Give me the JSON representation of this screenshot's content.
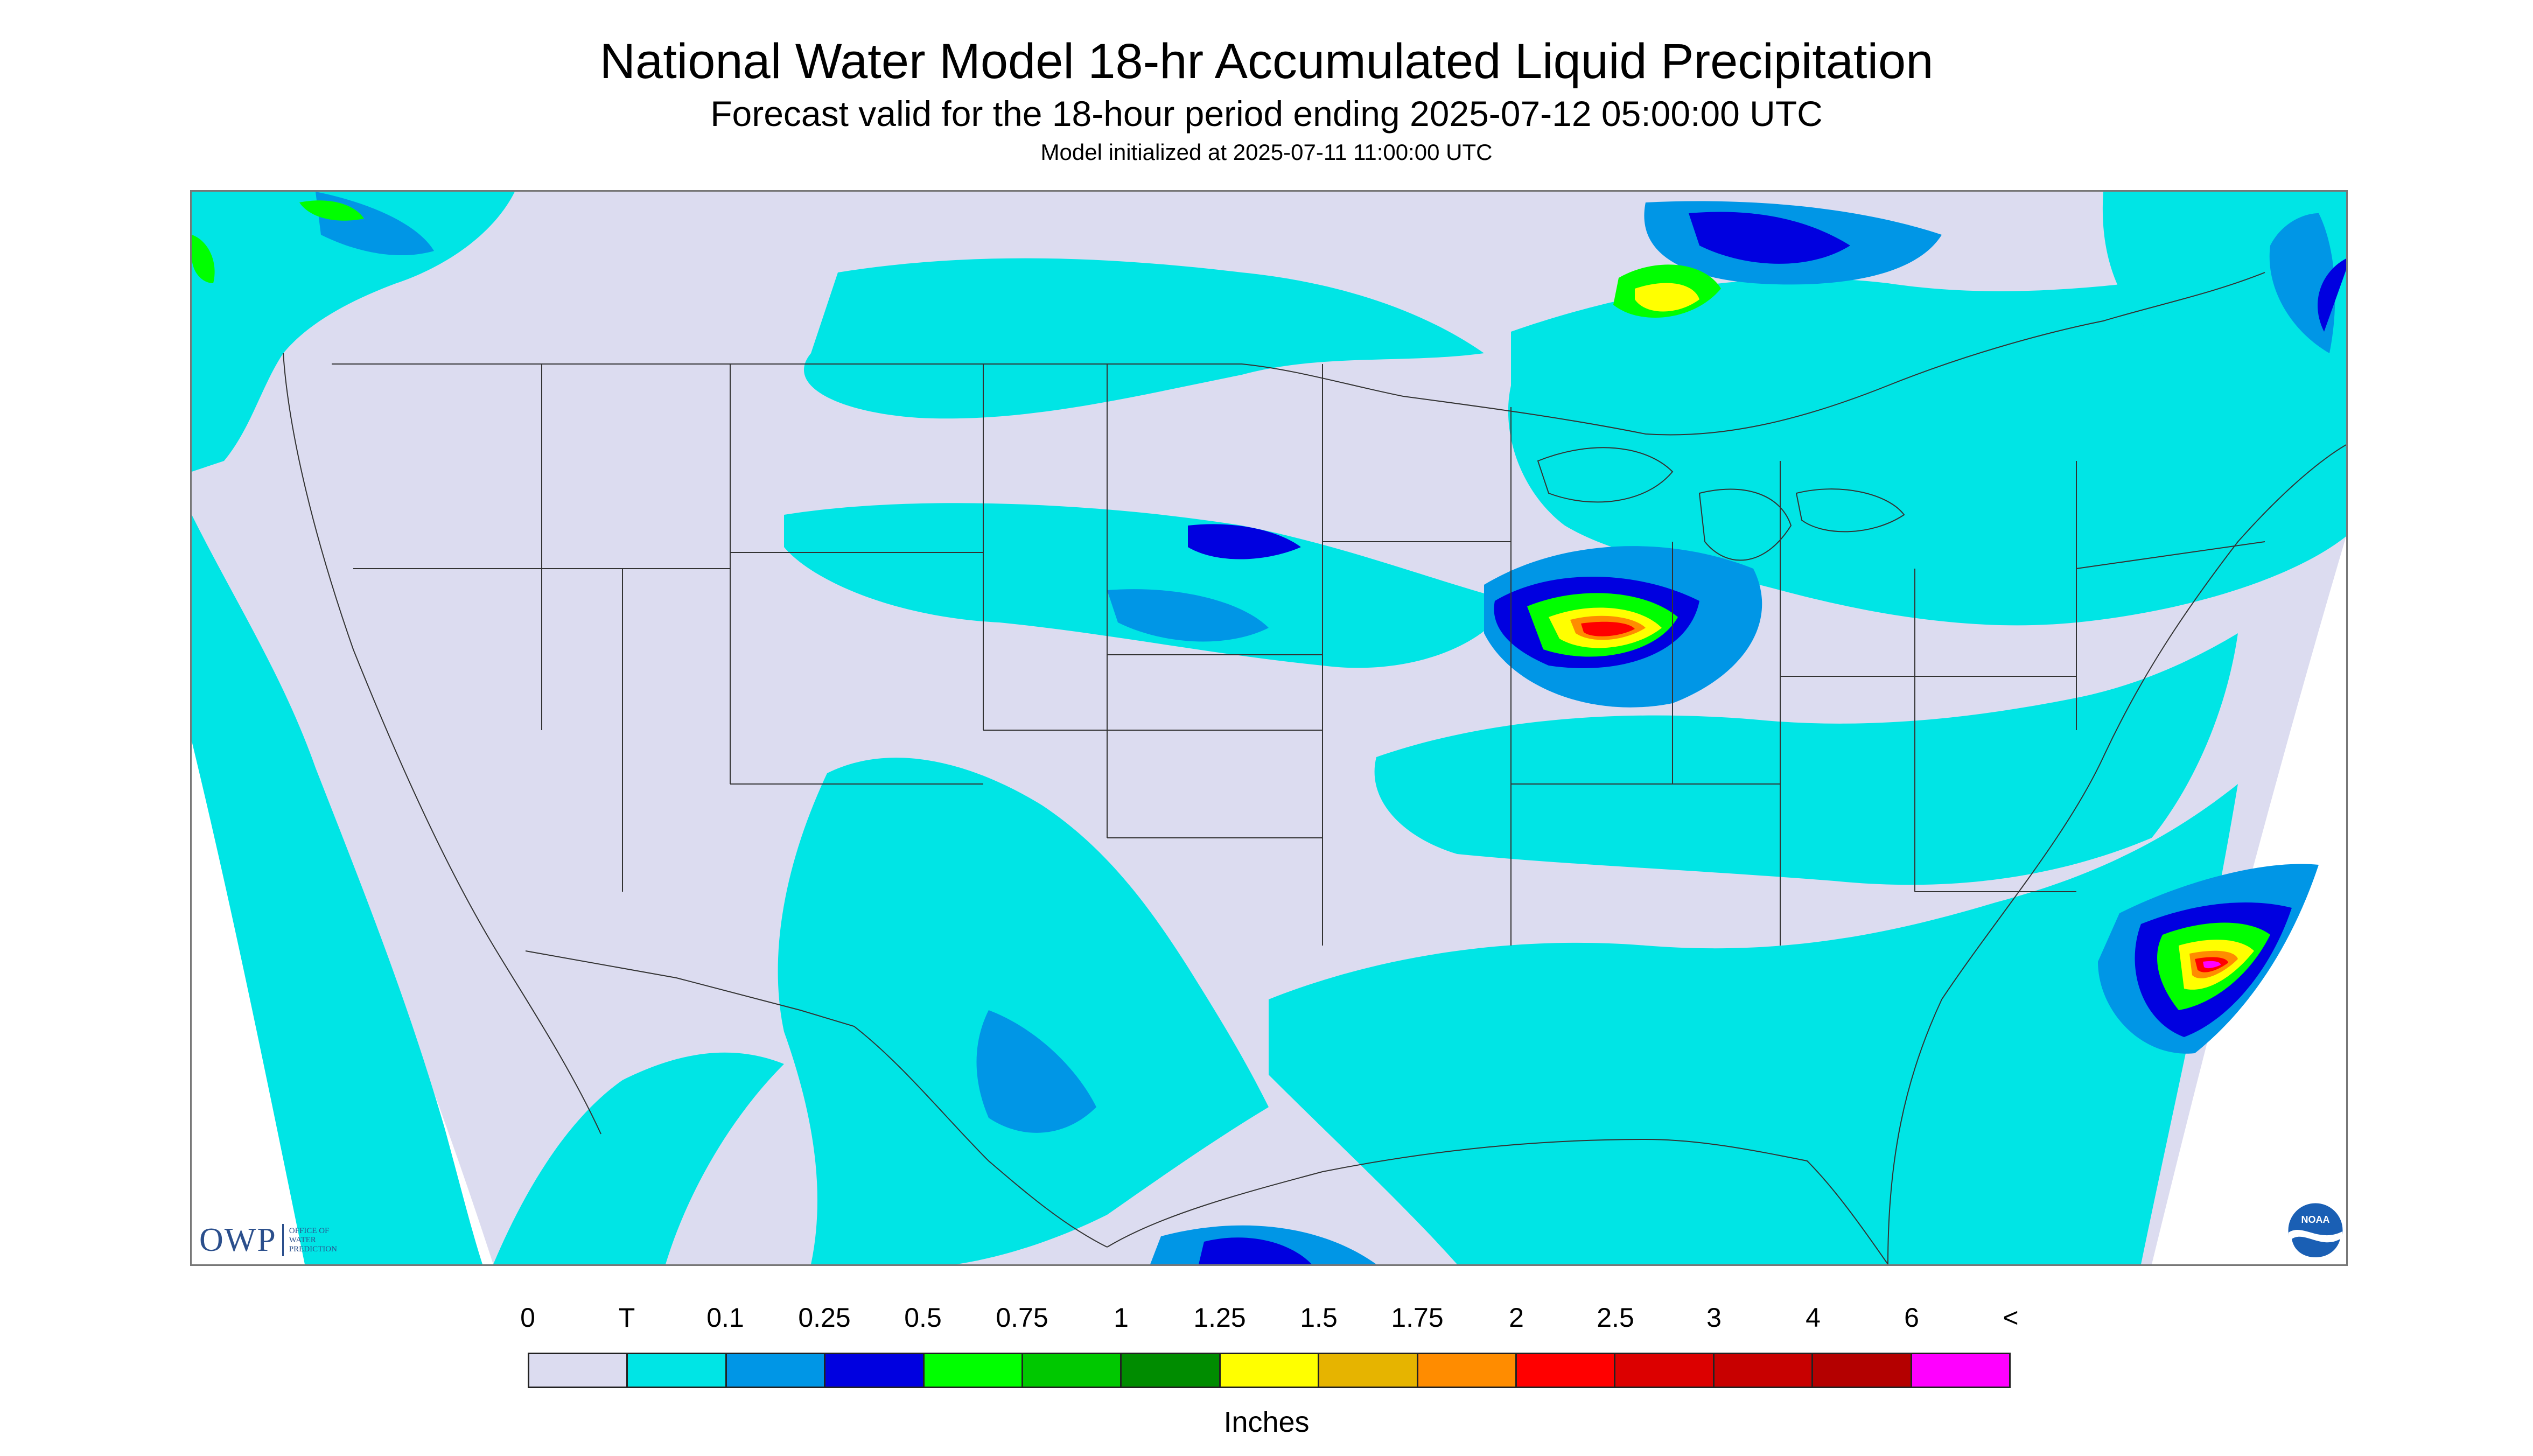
{
  "header": {
    "title": "National Water Model 18-hr Accumulated Liquid Precipitation",
    "subtitle": "Forecast valid for the 18-hour period ending 2025-07-12 05:00:00 UTC",
    "init_line": "Model initialized at 2025-07-11 11:00:00 UTC"
  },
  "map": {
    "region": "CONUS",
    "background_color": "#dcdcf0",
    "outside_domain_color": "#ffffff",
    "boundary_color": "#333333"
  },
  "logos": {
    "owp_mark": "OWP",
    "owp_text": [
      "OFFICE OF",
      "WATER",
      "PREDICTION"
    ],
    "noaa_text": "NOAA",
    "noaa_icon": "noaa-seal-icon"
  },
  "legend": {
    "labels": [
      "0",
      "T",
      "0.1",
      "0.25",
      "0.5",
      "0.75",
      "1",
      "1.25",
      "1.5",
      "1.75",
      "2",
      "2.5",
      "3",
      "4",
      "6",
      "<"
    ],
    "colors": [
      "#dcdcf0",
      "#00e5e5",
      "#0096e6",
      "#0000e0",
      "#00ff00",
      "#00c800",
      "#008c00",
      "#ffff00",
      "#e6b400",
      "#ff8c00",
      "#ff0000",
      "#dc0000",
      "#c80000",
      "#b40000",
      "#ff00ff",
      "#9650c8"
    ],
    "units": "Inches"
  }
}
